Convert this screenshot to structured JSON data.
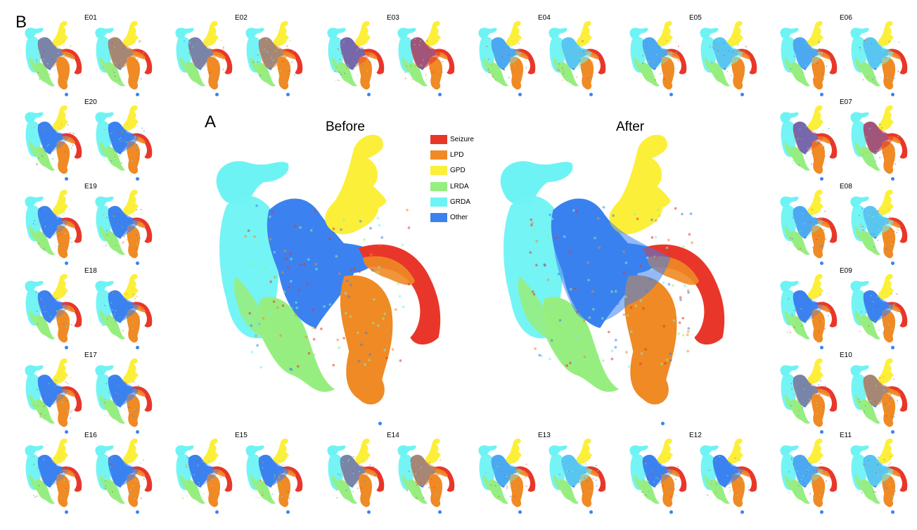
{
  "figure": {
    "panel_a_letter": "A",
    "panel_b_letter": "B",
    "before_title": "Before",
    "after_title": "After"
  },
  "legend": [
    {
      "label": "Seizure",
      "color": "#e8372a"
    },
    {
      "label": "LPD",
      "color": "#ef8a25"
    },
    {
      "label": "GPD",
      "color": "#fcef3a"
    },
    {
      "label": "LRDA",
      "color": "#97ee80"
    },
    {
      "label": "GRDA",
      "color": "#6ef3f4"
    },
    {
      "label": "Other",
      "color": "#3b82f0"
    }
  ],
  "experts": [
    "E01",
    "E02",
    "E03",
    "E04",
    "E05",
    "E06",
    "E07",
    "E08",
    "E09",
    "E10",
    "E11",
    "E12",
    "E13",
    "E14",
    "E15",
    "E16",
    "E17",
    "E18",
    "E19",
    "E20"
  ],
  "mini_tint": {
    "E01": "#ef8a25",
    "E02": "#ef8a25",
    "E03": "#e8372a",
    "E04": "#6ef3f4",
    "E05": "#6ef3f4",
    "E06": "#6ef3f4",
    "E07": "#e8372a",
    "E08": "#6ef3f4",
    "E09": "#3b82f0",
    "E10": "#ef8a25",
    "E11": "#6ef3f4",
    "E12": "#3b82f0",
    "E13": "#6ef3f4",
    "E14": "#ef8a25",
    "E15": "#3b82f0",
    "E16": "#3b82f0",
    "E17": "#3b82f0",
    "E18": "#3b82f0",
    "E19": "#3b82f0",
    "E20": "#3b82f0"
  }
}
